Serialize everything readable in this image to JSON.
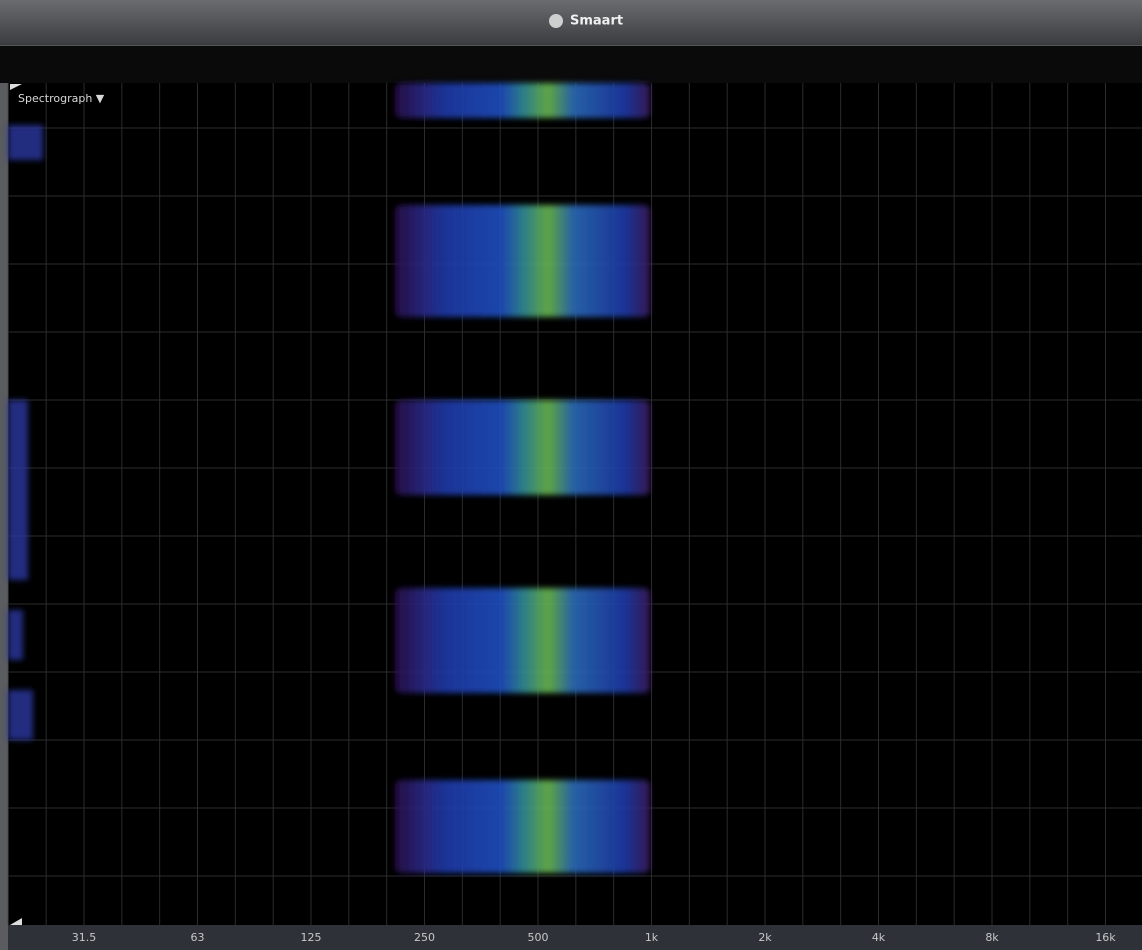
{
  "window": {
    "title": "Smaart"
  },
  "plot": {
    "mode_menu": "Spectrograph ▼",
    "x_axis_labels": [
      "31.5",
      "63",
      "125",
      "250",
      "500",
      "1k",
      "2k",
      "4k",
      "8k",
      "16k"
    ]
  }
}
